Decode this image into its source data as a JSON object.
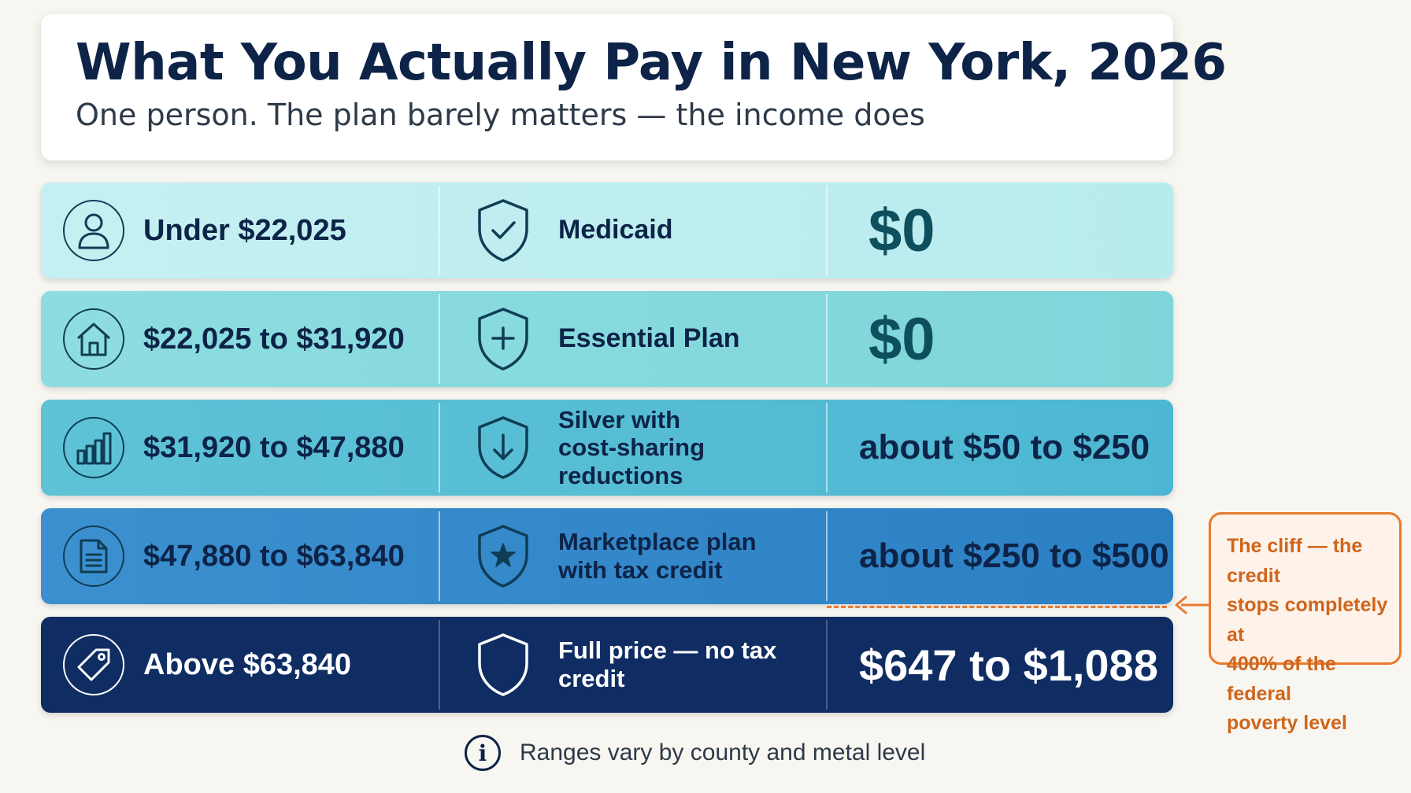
{
  "header": {
    "title": "What You Actually Pay in New York, 2026",
    "subtitle": "One person. The plan barely matters — the income does"
  },
  "rows": [
    {
      "income": "Under $22,025",
      "income_icon": "person-icon",
      "plan_line1": "Medicaid",
      "plan_line2": "",
      "plan_icon": "shield-check-icon",
      "cost": "$0"
    },
    {
      "income": "$22,025 to $31,920",
      "income_icon": "house-icon",
      "plan_line1": "Essential Plan",
      "plan_line2": "",
      "plan_icon": "shield-plus-icon",
      "cost": "$0"
    },
    {
      "income": "$31,920 to $47,880",
      "income_icon": "bar-chart-icon",
      "plan_line1": "Silver with",
      "plan_line2": "cost-sharing reductions",
      "plan_icon": "shield-down-arrow-icon",
      "cost": "about $50 to $250"
    },
    {
      "income": "$47,880 to $63,840",
      "income_icon": "document-icon",
      "plan_line1": "Marketplace plan",
      "plan_line2": "with tax credit",
      "plan_icon": "shield-star-icon",
      "cost": "about $250 to $500"
    },
    {
      "income": "Above $63,840",
      "income_icon": "price-tag-icon",
      "plan_line1": "Full price — no tax credit",
      "plan_line2": "",
      "plan_icon": "shield-outline-icon",
      "cost": "$647 to $1,088"
    }
  ],
  "callout": {
    "line1": "The cliff — the credit",
    "line2": "stops completely at",
    "line3": "400% of the federal",
    "line4": "poverty level"
  },
  "footnote": {
    "icon": "info-icon",
    "text": "Ranges vary by county and metal level"
  },
  "colors": {
    "navy": "#0d2347",
    "accent_orange": "#e87a2e",
    "row1": "#c5f0f2",
    "row2": "#8ddde0",
    "row3": "#5fc3d6",
    "row4": "#3c90cf",
    "row5": "#0f2d63"
  }
}
